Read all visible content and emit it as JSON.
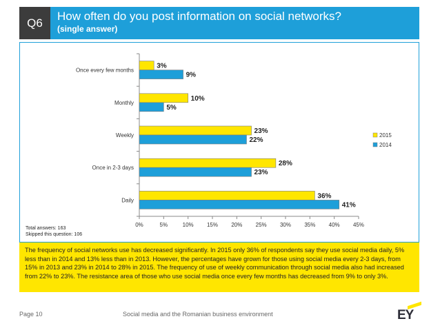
{
  "header": {
    "question_number": "Q6",
    "title": "How often do you post information on social networks?",
    "subtitle": "(single answer)"
  },
  "chart_data": {
    "type": "bar",
    "orientation": "horizontal",
    "categories": [
      "Once every few months",
      "Monthly",
      "Weekly",
      "Once in 2-3 days",
      "Daily"
    ],
    "series": [
      {
        "name": "2015",
        "color": "#ffe600",
        "values": [
          3,
          10,
          23,
          28,
          36
        ],
        "labels": [
          "3%",
          "10%",
          "23%",
          "28%",
          "36%"
        ]
      },
      {
        "name": "2014",
        "color": "#1e9fd9",
        "values": [
          9,
          5,
          22,
          23,
          41
        ],
        "labels": [
          "9%",
          "5%",
          "22%",
          "23%",
          "41%"
        ]
      }
    ],
    "xlim": [
      0,
      45
    ],
    "xticks": [
      0,
      5,
      10,
      15,
      20,
      25,
      30,
      35,
      40,
      45
    ],
    "xtick_labels": [
      "0%",
      "5%",
      "10%",
      "15%",
      "20%",
      "25%",
      "30%",
      "35%",
      "40%",
      "45%"
    ],
    "legend": [
      "2015",
      "2014"
    ],
    "legend_position": "right"
  },
  "notes": {
    "total": "Total answers: 163",
    "skipped": "Skipped this question: 106"
  },
  "summary": "The frequency of social networks use has decreased significantly. In 2015 only 36% of respondents say they use social media daily, 5% less than in 2014 and 13% less than in 2013. However, the percentages have grown for those using social media every 2-3 days, from 15% in 2013 and 23% in 2014 to 28% in 2015. The frequency of use of weekly communication through social media also had increased from 22% to 23%. The resistance area of those who use social media once every few months has decreased from 9% to only 3%.",
  "footer": {
    "page": "Page 10",
    "caption": "Social media and the Romanian business environment",
    "logo": "EY"
  }
}
